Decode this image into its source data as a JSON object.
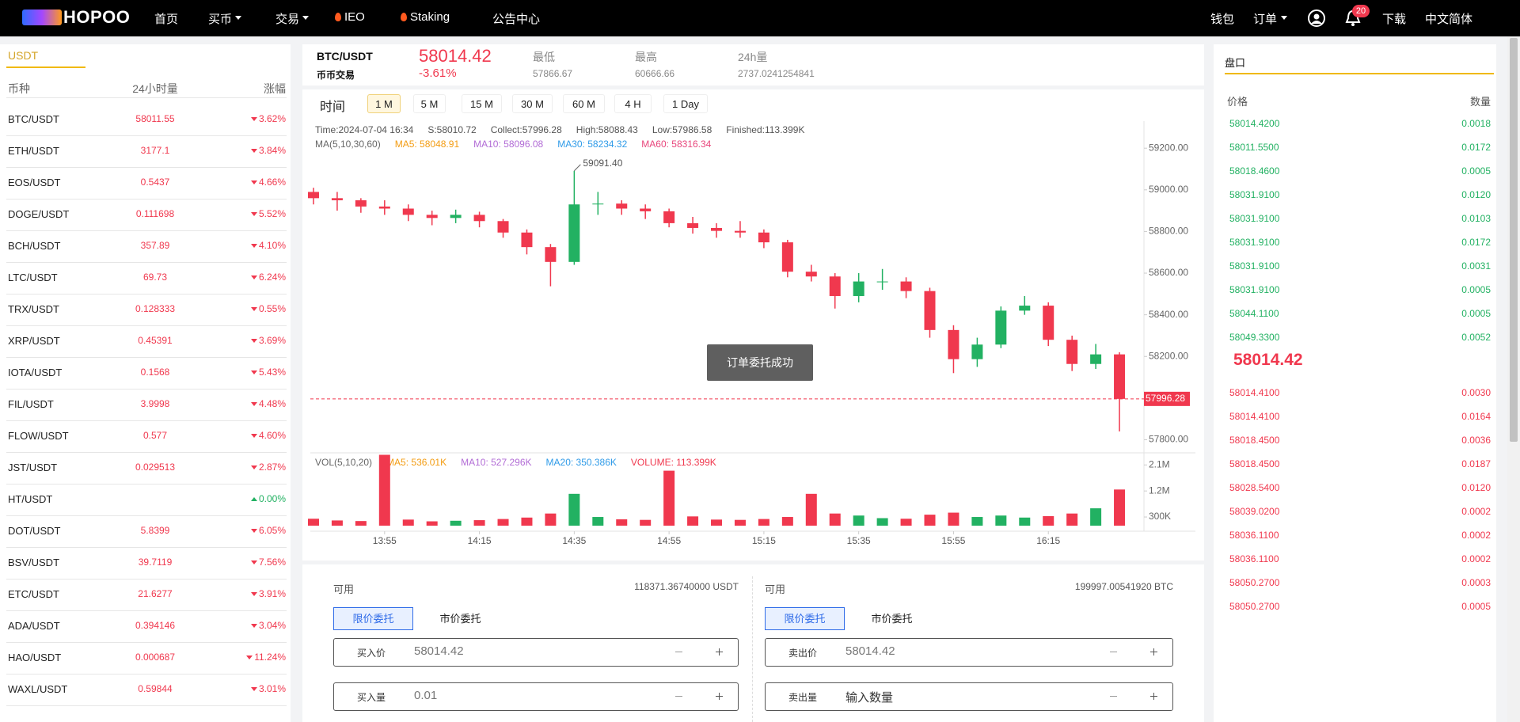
{
  "nav": {
    "logo": "HOPOO",
    "menu": [
      "首页",
      "买币",
      "交易",
      "IEO",
      "Staking",
      "公告中心"
    ],
    "right": [
      "钱包",
      "订单",
      "下载",
      "中文简体"
    ],
    "badge": "20"
  },
  "market": {
    "tab": "USDT",
    "headers": [
      "币种",
      "24小时量",
      "涨幅"
    ],
    "rows": [
      {
        "pair": "BTC/USDT",
        "price": "58011.55",
        "change": "3.62%",
        "trend": "down"
      },
      {
        "pair": "ETH/USDT",
        "price": "3177.1",
        "change": "3.84%",
        "trend": "down"
      },
      {
        "pair": "EOS/USDT",
        "price": "0.5437",
        "change": "4.66%",
        "trend": "down"
      },
      {
        "pair": "DOGE/USDT",
        "price": "0.111698",
        "change": "5.52%",
        "trend": "down"
      },
      {
        "pair": "BCH/USDT",
        "price": "357.89",
        "change": "4.10%",
        "trend": "down"
      },
      {
        "pair": "LTC/USDT",
        "price": "69.73",
        "change": "6.24%",
        "trend": "down"
      },
      {
        "pair": "TRX/USDT",
        "price": "0.128333",
        "change": "0.55%",
        "trend": "down"
      },
      {
        "pair": "XRP/USDT",
        "price": "0.45391",
        "change": "3.69%",
        "trend": "down"
      },
      {
        "pair": "IOTA/USDT",
        "price": "0.1568",
        "change": "5.43%",
        "trend": "down"
      },
      {
        "pair": "FIL/USDT",
        "price": "3.9998",
        "change": "4.48%",
        "trend": "down"
      },
      {
        "pair": "FLOW/USDT",
        "price": "0.577",
        "change": "4.60%",
        "trend": "down"
      },
      {
        "pair": "JST/USDT",
        "price": "0.029513",
        "change": "2.87%",
        "trend": "down"
      },
      {
        "pair": "HT/USDT",
        "change": "0.00%",
        "trend": "up"
      },
      {
        "pair": "DOT/USDT",
        "price": "5.8399",
        "change": "6.05%",
        "trend": "down"
      },
      {
        "pair": "BSV/USDT",
        "price": "39.7119",
        "change": "7.56%",
        "trend": "down"
      },
      {
        "pair": "ETC/USDT",
        "price": "21.6277",
        "change": "3.91%",
        "trend": "down"
      },
      {
        "pair": "ADA/USDT",
        "price": "0.394146",
        "change": "3.04%",
        "trend": "down"
      },
      {
        "pair": "HAO/USDT",
        "price": "0.000687",
        "change": "11.24%",
        "trend": "down"
      },
      {
        "pair": "WAXL/USDT",
        "price": "0.59844",
        "change": "3.01%",
        "trend": "down"
      }
    ]
  },
  "ticker": {
    "pair": "BTC/USDT",
    "market": "币币交易",
    "price": "58014.42",
    "change": "-3.61%",
    "stats": [
      {
        "label": "最低",
        "value": "57866.67"
      },
      {
        "label": "最高",
        "value": "60666.66"
      },
      {
        "label": "24h量",
        "value": "2737.0241254841"
      }
    ]
  },
  "timeframes": {
    "label": "时间",
    "options": [
      "1 M",
      "5 M",
      "15 M",
      "30 M",
      "60 M",
      "4 H",
      "1 Day"
    ],
    "active": 0
  },
  "chart_data": {
    "type": "candlestick",
    "up_color": "#22b162",
    "down_color": "#f0384e",
    "info": [
      "Time:2024-07-04 16:34",
      "S:58010.72",
      "Collect:57996.28",
      "High:58088.43",
      "Low:57986.58",
      "Finished:113.399K"
    ],
    "ma_legend": [
      {
        "text": "MA(5,10,30,60)",
        "color": "#666666"
      },
      {
        "text": "MA5: 58048.91",
        "color": "#f39c12"
      },
      {
        "text": "MA10: 58096.08",
        "color": "#b26cd6"
      },
      {
        "text": "MA30: 58234.32",
        "color": "#2f9be8"
      },
      {
        "text": "MA60: 58316.34",
        "color": "#e8467c"
      }
    ],
    "vol_legend": [
      {
        "text": "VOL(5,10,20)",
        "color": "#666666"
      },
      {
        "text": "MA5: 536.01K",
        "color": "#f39c12"
      },
      {
        "text": "MA10: 527.296K",
        "color": "#b26cd6"
      },
      {
        "text": "MA20: 350.386K",
        "color": "#2f9be8"
      },
      {
        "text": "VOLUME: 113.399K",
        "color": "#f0384e"
      }
    ],
    "max_label": "59091.40",
    "last_label": "57996.28",
    "xlim": [
      "13:38",
      "16:35"
    ],
    "xticks": [
      "13:55",
      "14:15",
      "14:35",
      "14:55",
      "15:15",
      "15:35",
      "15:55",
      "16:15"
    ],
    "ylim": [
      57760,
      59330
    ],
    "yticks": [
      {
        "value": 57800,
        "label": "57800.00"
      },
      {
        "value": 58000,
        "label": "58000.00"
      },
      {
        "value": 58200,
        "label": "58200.00"
      },
      {
        "value": 58400,
        "label": "58400.00"
      },
      {
        "value": 58600,
        "label": "58600.00"
      },
      {
        "value": 58800,
        "label": "58800.00"
      },
      {
        "value": 59000,
        "label": "59000.00"
      },
      {
        "value": 59200,
        "label": "59200.00"
      }
    ],
    "y2lim": [
      0,
      2600000
    ],
    "y2ticks": [
      {
        "value": 300000,
        "label": "300K"
      },
      {
        "value": 1200000,
        "label": "1.2M"
      },
      {
        "value": 2100000,
        "label": "2.1M"
      }
    ],
    "candles": [
      {
        "t": "13:40",
        "o": 58990,
        "h": 59010,
        "l": 58930,
        "c": 58960,
        "v": 240000
      },
      {
        "t": "13:45",
        "o": 58960,
        "h": 58990,
        "l": 58900,
        "c": 58950,
        "v": 180000
      },
      {
        "t": "13:50",
        "o": 58950,
        "h": 58960,
        "l": 58890,
        "c": 58920,
        "v": 160000
      },
      {
        "t": "13:55",
        "o": 58920,
        "h": 58950,
        "l": 58880,
        "c": 58910,
        "v": 2450000
      },
      {
        "t": "14:00",
        "o": 58910,
        "h": 58930,
        "l": 58850,
        "c": 58880,
        "v": 210000
      },
      {
        "t": "14:05",
        "o": 58880,
        "h": 58900,
        "l": 58830,
        "c": 58865,
        "v": 150000
      },
      {
        "t": "14:10",
        "o": 58865,
        "h": 58905,
        "l": 58840,
        "c": 58880,
        "v": 170000
      },
      {
        "t": "14:15",
        "o": 58880,
        "h": 58895,
        "l": 58820,
        "c": 58850,
        "v": 190000
      },
      {
        "t": "14:20",
        "o": 58850,
        "h": 58860,
        "l": 58770,
        "c": 58795,
        "v": 230000
      },
      {
        "t": "14:25",
        "o": 58795,
        "h": 58810,
        "l": 58690,
        "c": 58725,
        "v": 280000
      },
      {
        "t": "14:30",
        "o": 58725,
        "h": 58740,
        "l": 58537,
        "c": 58654,
        "v": 420000
      },
      {
        "t": "14:35",
        "o": 58654,
        "h": 59091.4,
        "l": 58640,
        "c": 58930,
        "v": 1100000
      },
      {
        "t": "14:40",
        "o": 58930,
        "h": 58990,
        "l": 58880,
        "c": 58934,
        "v": 300000
      },
      {
        "t": "14:45",
        "o": 58934,
        "h": 58950,
        "l": 58880,
        "c": 58910,
        "v": 220000
      },
      {
        "t": "14:50",
        "o": 58910,
        "h": 58930,
        "l": 58860,
        "c": 58897,
        "v": 200000
      },
      {
        "t": "14:55",
        "o": 58897,
        "h": 58910,
        "l": 58820,
        "c": 58840,
        "v": 1900000
      },
      {
        "t": "15:00",
        "o": 58840,
        "h": 58870,
        "l": 58790,
        "c": 58817,
        "v": 320000
      },
      {
        "t": "15:05",
        "o": 58817,
        "h": 58840,
        "l": 58770,
        "c": 58803,
        "v": 210000
      },
      {
        "t": "15:10",
        "o": 58803,
        "h": 58850,
        "l": 58770,
        "c": 58795,
        "v": 200000
      },
      {
        "t": "15:15",
        "o": 58795,
        "h": 58810,
        "l": 58720,
        "c": 58748,
        "v": 230000
      },
      {
        "t": "15:20",
        "o": 58748,
        "h": 58760,
        "l": 58580,
        "c": 58607,
        "v": 300000
      },
      {
        "t": "15:25",
        "o": 58607,
        "h": 58640,
        "l": 58560,
        "c": 58584,
        "v": 1100000
      },
      {
        "t": "15:30",
        "o": 58584,
        "h": 58600,
        "l": 58430,
        "c": 58490,
        "v": 420000
      },
      {
        "t": "15:35",
        "o": 58490,
        "h": 58600,
        "l": 58460,
        "c": 58560,
        "v": 350000
      },
      {
        "t": "15:40",
        "o": 58560,
        "h": 58620,
        "l": 58520,
        "c": 58560,
        "v": 260000
      },
      {
        "t": "15:45",
        "o": 58560,
        "h": 58580,
        "l": 58480,
        "c": 58514,
        "v": 240000
      },
      {
        "t": "15:50",
        "o": 58514,
        "h": 58530,
        "l": 58290,
        "c": 58327,
        "v": 380000
      },
      {
        "t": "15:55",
        "o": 58327,
        "h": 58350,
        "l": 58120,
        "c": 58187,
        "v": 450000
      },
      {
        "t": "16:00",
        "o": 58187,
        "h": 58290,
        "l": 58150,
        "c": 58257,
        "v": 300000
      },
      {
        "t": "16:05",
        "o": 58257,
        "h": 58440,
        "l": 58240,
        "c": 58420,
        "v": 350000
      },
      {
        "t": "16:10",
        "o": 58420,
        "h": 58490,
        "l": 58400,
        "c": 58444,
        "v": 280000
      },
      {
        "t": "16:15",
        "o": 58444,
        "h": 58460,
        "l": 58250,
        "c": 58280,
        "v": 330000
      },
      {
        "t": "16:20",
        "o": 58280,
        "h": 58300,
        "l": 58130,
        "c": 58164,
        "v": 420000
      },
      {
        "t": "16:25",
        "o": 58164,
        "h": 58260,
        "l": 58140,
        "c": 58210,
        "v": 600000
      },
      {
        "t": "16:30",
        "o": 58210,
        "h": 58220,
        "l": 57840,
        "c": 57996.28,
        "v": 1250000
      }
    ]
  },
  "toast": "订单委托成功",
  "trade": {
    "buy": {
      "avail_label": "可用",
      "avail": "118371.36740000 USDT",
      "modes": [
        "限价委托",
        "市价委托"
      ],
      "price_label": "买入价",
      "price": "58014.42",
      "qty_label": "买入量",
      "qty": "0.01"
    },
    "sell": {
      "avail_label": "可用",
      "avail": "199997.00541920 BTC",
      "modes": [
        "限价委托",
        "市价委托"
      ],
      "price_label": "卖出价",
      "price": "58014.42",
      "qty_label": "卖出量",
      "qty": "输入数量"
    }
  },
  "orderbook": {
    "title": "盘口",
    "headers": [
      "价格",
      "数量"
    ],
    "asks": [
      [
        "58014.4200",
        "0.0018"
      ],
      [
        "58011.5500",
        "0.0172"
      ],
      [
        "58018.4600",
        "0.0005"
      ],
      [
        "58031.9100",
        "0.0120"
      ],
      [
        "58031.9100",
        "0.0103"
      ],
      [
        "58031.9100",
        "0.0172"
      ],
      [
        "58031.9100",
        "0.0031"
      ],
      [
        "58031.9100",
        "0.0005"
      ],
      [
        "58044.1100",
        "0.0005"
      ],
      [
        "58049.3300",
        "0.0052"
      ]
    ],
    "last": "58014.42",
    "bids": [
      [
        "58014.4100",
        "0.0030"
      ],
      [
        "58014.4100",
        "0.0164"
      ],
      [
        "58018.4500",
        "0.0036"
      ],
      [
        "58018.4500",
        "0.0187"
      ],
      [
        "58028.5400",
        "0.0120"
      ],
      [
        "58039.0200",
        "0.0002"
      ],
      [
        "58036.1100",
        "0.0002"
      ],
      [
        "58036.1100",
        "0.0002"
      ],
      [
        "58050.2700",
        "0.0003"
      ],
      [
        "58050.2700",
        "0.0005"
      ]
    ]
  }
}
